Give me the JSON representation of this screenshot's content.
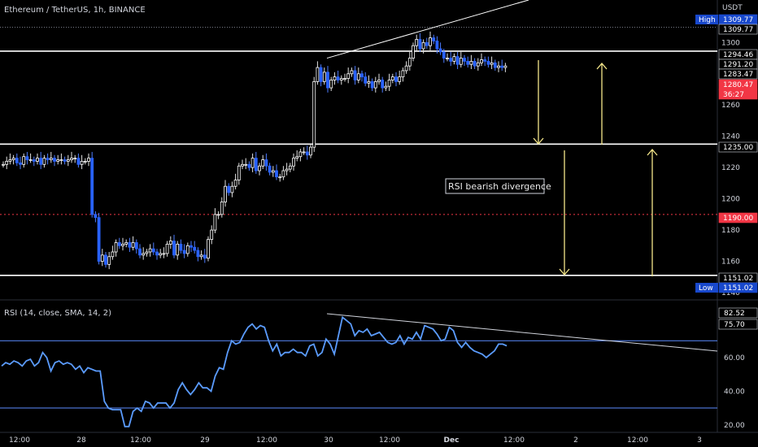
{
  "header": {
    "title": "Ethereum / TetherUS, 1h, BINANCE",
    "currency": "USDT"
  },
  "chart_data": [
    {
      "type": "candlestick",
      "title": "Ethereum / TetherUS, 1h, BINANCE",
      "y_unit": "USDT",
      "ylim": [
        1130,
        1325
      ],
      "y_ticks": [
        1140,
        1160,
        1180,
        1200,
        1220,
        1240,
        1260,
        1280,
        1300
      ],
      "x_ticks": [
        "12:00",
        "28",
        "12:00",
        "29",
        "12:00",
        "30",
        "12:00",
        "Dec",
        "12:00",
        "2",
        "12:00",
        "3"
      ],
      "price_tags": [
        {
          "label": "High",
          "value": "1309.77"
        },
        {
          "label": "",
          "value": "1309.77"
        },
        {
          "label": "",
          "value": "1294.46"
        },
        {
          "label": "",
          "value": "1291.20"
        },
        {
          "label": "",
          "value": "1283.47"
        },
        {
          "label": "",
          "value": "1280.47"
        },
        {
          "label": "",
          "value": "36:27"
        },
        {
          "label": "",
          "value": "1235.00"
        },
        {
          "label": "",
          "value": "1190.00"
        },
        {
          "label": "",
          "value": "1151.02"
        },
        {
          "label": "Low",
          "value": "1151.02"
        }
      ],
      "horizontal_levels": [
        1294.46,
        1235.0,
        1151.02
      ],
      "dotted_levels": [
        1309.77,
        1190.0
      ],
      "annotation": "RSI bearish divergence",
      "close_series": [
        1222,
        1224,
        1225,
        1226,
        1223,
        1222,
        1227,
        1225,
        1225,
        1224,
        1226,
        1222,
        1226,
        1225,
        1226,
        1224,
        1225,
        1225,
        1224,
        1225,
        1226,
        1226,
        1222,
        1224,
        1224,
        1226,
        1190,
        1188,
        1160,
        1164,
        1158,
        1163,
        1166,
        1172,
        1170,
        1171,
        1172,
        1169,
        1172,
        1168,
        1164,
        1165,
        1166,
        1168,
        1166,
        1164,
        1165,
        1165,
        1171,
        1173,
        1164,
        1171,
        1167,
        1165,
        1170,
        1169,
        1167,
        1163,
        1164,
        1162,
        1174,
        1180,
        1190,
        1190,
        1198,
        1208,
        1204,
        1208,
        1212,
        1221,
        1222,
        1222,
        1220,
        1226,
        1218,
        1221,
        1225,
        1221,
        1217,
        1218,
        1214,
        1214,
        1218,
        1219,
        1221,
        1226,
        1227,
        1230,
        1230,
        1228,
        1233,
        1275,
        1284,
        1275,
        1281,
        1271,
        1276,
        1278,
        1276,
        1277,
        1277,
        1280,
        1282,
        1276,
        1280,
        1278,
        1274,
        1275,
        1271,
        1275,
        1276,
        1271,
        1272,
        1276,
        1278,
        1275,
        1278,
        1282,
        1285,
        1290,
        1298,
        1302,
        1296,
        1300,
        1298,
        1303,
        1301,
        1296,
        1294,
        1290,
        1290,
        1288,
        1291,
        1286,
        1290,
        1288,
        1286,
        1288,
        1285,
        1287,
        1289,
        1288,
        1286,
        1287,
        1284,
        1285,
        1284,
        1285
      ]
    },
    {
      "type": "line",
      "title": "RSI (14, close, SMA, 14, 2)",
      "ylim": [
        15,
        90
      ],
      "y_ticks": [
        20,
        40,
        60
      ],
      "bands": [
        70,
        30
      ],
      "value_tags": [
        "82.52",
        "75.70"
      ],
      "series": [
        {
          "values": [
            55,
            57,
            56,
            58,
            57,
            55,
            58,
            59,
            55,
            57,
            63,
            60,
            52,
            57,
            58,
            56,
            57,
            56,
            53,
            55,
            51,
            54,
            53,
            52,
            52,
            34,
            30,
            29,
            29,
            29,
            19,
            19,
            28,
            30,
            28,
            34,
            33,
            30,
            33,
            33,
            33,
            30,
            33,
            41,
            45,
            41,
            38,
            41,
            45,
            42,
            42,
            40,
            49,
            54,
            53,
            63,
            70,
            68,
            69,
            74,
            78,
            80,
            77,
            79,
            78,
            70,
            64,
            68,
            61,
            63,
            63,
            65,
            63,
            63,
            61,
            67,
            68,
            61,
            63,
            71,
            68,
            62,
            73,
            84,
            82,
            80,
            73,
            76,
            75,
            77,
            73,
            74,
            75,
            72,
            69,
            68,
            69,
            73,
            68,
            72,
            71,
            75,
            71,
            79,
            78,
            77,
            74,
            70,
            71,
            78,
            76,
            69,
            66,
            69,
            66,
            64,
            63,
            62,
            60,
            62,
            64,
            68,
            68,
            67
          ]
        }
      ]
    }
  ]
}
